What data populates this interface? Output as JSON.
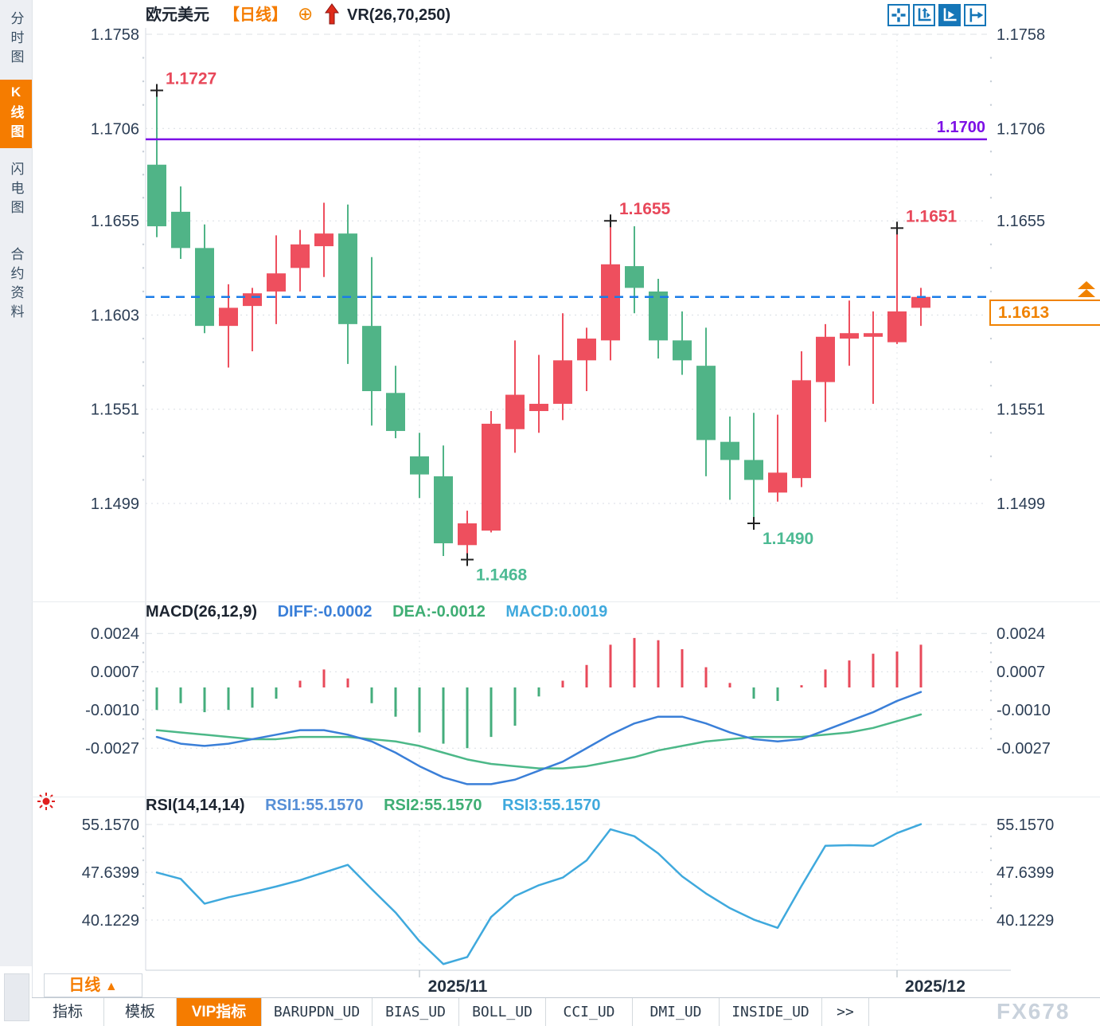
{
  "sidebar": {
    "items": [
      {
        "label": "分时图",
        "active": false
      },
      {
        "label": "K线图",
        "active": true
      },
      {
        "label": "闪电图",
        "active": false
      },
      {
        "label": "合约资料",
        "active": false
      }
    ]
  },
  "header": {
    "symbol": "欧元美元",
    "period_tag": "【日线】",
    "indicator": "VR(26,70,250)"
  },
  "toolbar_icons": [
    "crosshair",
    "axis-scale",
    "auto-scroll",
    "jump-to-latest"
  ],
  "indicators": {
    "macd": {
      "title": "MACD(26,12,9)",
      "diff": "DIFF:-0.0002",
      "dea": "DEA:-0.0012",
      "macd": "MACD:0.0019"
    },
    "rsi": {
      "title": "RSI(14,14,14)",
      "rsi1": "RSI1:55.1570",
      "rsi2": "RSI2:55.1570",
      "rsi3": "RSI3:55.1570"
    }
  },
  "price_box": {
    "value": "1.1613"
  },
  "period_button": {
    "label": "日线",
    "arrow": "▲"
  },
  "bottom_tabs": [
    {
      "label": "指标",
      "active": false,
      "mono": false
    },
    {
      "label": "模板",
      "active": false,
      "mono": false
    },
    {
      "label": "VIP指标",
      "active": true,
      "mono": false
    },
    {
      "label": "BARUPDN_UD",
      "active": false,
      "mono": true
    },
    {
      "label": "BIAS_UD",
      "active": false,
      "mono": true
    },
    {
      "label": "BOLL_UD",
      "active": false,
      "mono": true
    },
    {
      "label": "CCI_UD",
      "active": false,
      "mono": true
    },
    {
      "label": "DMI_UD",
      "active": false,
      "mono": true
    },
    {
      "label": "INSIDE_UD",
      "active": false,
      "mono": true
    },
    {
      "label": ">>",
      "active": false,
      "mono": true
    }
  ],
  "watermark": "FX678",
  "colors": {
    "up": "#ee4f5e",
    "down": "#50b487",
    "hist_up": "#e8495a",
    "hist_down": "#44ad7c",
    "diff_line": "#3a7fd8",
    "dea_line": "#4cb888",
    "rsi_line": "#3fa9dd",
    "ann_high": "#e8485a",
    "ann_low": "#4cba93",
    "hline_purple": "#7d10e6",
    "hline_blue": "#1a7ce8",
    "axis_text": "#2c3e55",
    "grid": "#d9dee4",
    "month_label": "#233040"
  },
  "chart_data": [
    {
      "panel": "price",
      "type": "candlestick",
      "symbol": "欧元美元",
      "period": "日线",
      "y_ticks": [
        1.1758,
        1.1706,
        1.1655,
        1.1603,
        1.1551,
        1.1499
      ],
      "price_top": 1.1758,
      "price_bottom": 1.1499,
      "candles": [
        [
          1.1686,
          1.1727,
          1.1646,
          1.1652
        ],
        [
          1.166,
          1.1674,
          1.1634,
          1.164
        ],
        [
          1.164,
          1.1653,
          1.1593,
          1.1597
        ],
        [
          1.1597,
          1.162,
          1.1574,
          1.1607
        ],
        [
          1.1608,
          1.1618,
          1.1583,
          1.1615
        ],
        [
          1.1616,
          1.1647,
          1.1598,
          1.1626
        ],
        [
          1.1629,
          1.165,
          1.1616,
          1.1642
        ],
        [
          1.1641,
          1.1665,
          1.1624,
          1.1648
        ],
        [
          1.1648,
          1.1664,
          1.1576,
          1.1598
        ],
        [
          1.1597,
          1.1635,
          1.1542,
          1.1561
        ],
        [
          1.156,
          1.1575,
          1.1535,
          1.1539
        ],
        [
          1.1525,
          1.1538,
          1.1502,
          1.1515
        ],
        [
          1.1514,
          1.1531,
          1.147,
          1.1477
        ],
        [
          1.1476,
          1.1495,
          1.1468,
          1.1488
        ],
        [
          1.1484,
          1.155,
          1.1483,
          1.1543
        ],
        [
          1.154,
          1.1589,
          1.1527,
          1.1559
        ],
        [
          1.155,
          1.1581,
          1.1538,
          1.1554
        ],
        [
          1.1554,
          1.1604,
          1.1545,
          1.1578
        ],
        [
          1.1578,
          1.1596,
          1.1561,
          1.159
        ],
        [
          1.1589,
          1.1655,
          1.1578,
          1.1631
        ],
        [
          1.163,
          1.1652,
          1.1604,
          1.1618
        ],
        [
          1.1616,
          1.1623,
          1.1579,
          1.1589
        ],
        [
          1.1589,
          1.1605,
          1.157,
          1.1578
        ],
        [
          1.1575,
          1.1596,
          1.1514,
          1.1534
        ],
        [
          1.1533,
          1.1547,
          1.1501,
          1.1523
        ],
        [
          1.1523,
          1.1549,
          1.1488,
          1.1512
        ],
        [
          1.1505,
          1.1548,
          1.15,
          1.1516
        ],
        [
          1.1513,
          1.1583,
          1.1508,
          1.1567
        ],
        [
          1.1566,
          1.1598,
          1.1544,
          1.1591
        ],
        [
          1.159,
          1.1611,
          1.1575,
          1.1593
        ],
        [
          1.1591,
          1.1605,
          1.1554,
          1.1593
        ],
        [
          1.1588,
          1.1651,
          1.1587,
          1.1605
        ],
        [
          1.1607,
          1.1618,
          1.1597,
          1.1613
        ]
      ],
      "annotations": [
        {
          "i": 0,
          "side": "high",
          "text": "1.1727"
        },
        {
          "i": 19,
          "side": "high",
          "text": "1.1655"
        },
        {
          "i": 31,
          "side": "high",
          "text": "1.1651"
        },
        {
          "i": 13,
          "side": "low",
          "text": "1.1468"
        },
        {
          "i": 25,
          "side": "low",
          "text": "1.1490"
        }
      ],
      "hlines": [
        {
          "value": 1.17,
          "label": "1.1700",
          "style": "solid",
          "color_key": "hline_purple"
        },
        {
          "value": 1.1613,
          "label": "",
          "style": "dashed",
          "color_key": "hline_blue"
        }
      ],
      "last_price": 1.1613,
      "month_vline_indices": [
        11,
        31
      ]
    },
    {
      "panel": "macd",
      "type": "bar+lines",
      "title": "MACD(26,12,9)",
      "y_ticks": [
        0.0024,
        0.0007,
        -0.001,
        -0.0027
      ],
      "hist": [
        -0.001,
        -0.0007,
        -0.0011,
        -0.001,
        -0.0009,
        -0.0005,
        0.0003,
        0.0008,
        0.0004,
        -0.0007,
        -0.0013,
        -0.002,
        -0.0025,
        -0.0027,
        -0.0022,
        -0.0017,
        -0.0004,
        0.0003,
        0.001,
        0.0019,
        0.0022,
        0.0021,
        0.0017,
        0.0009,
        0.0002,
        -0.0005,
        -0.0006,
        0.0001,
        0.0008,
        0.0012,
        0.0015,
        0.0016,
        0.0019
      ],
      "diff": [
        -0.0022,
        -0.0025,
        -0.0026,
        -0.0025,
        -0.0023,
        -0.0021,
        -0.0019,
        -0.0019,
        -0.0021,
        -0.0024,
        -0.0029,
        -0.0035,
        -0.004,
        -0.0043,
        -0.0043,
        -0.0041,
        -0.0037,
        -0.0033,
        -0.0027,
        -0.0021,
        -0.0016,
        -0.0013,
        -0.0013,
        -0.0016,
        -0.002,
        -0.0023,
        -0.0024,
        -0.0023,
        -0.0019,
        -0.0015,
        -0.0011,
        -0.0006,
        -0.0002
      ],
      "dea": [
        -0.0019,
        -0.002,
        -0.0021,
        -0.0022,
        -0.0023,
        -0.0023,
        -0.0022,
        -0.0022,
        -0.0022,
        -0.0023,
        -0.0024,
        -0.0026,
        -0.0029,
        -0.0032,
        -0.0034,
        -0.0035,
        -0.0036,
        -0.0036,
        -0.0035,
        -0.0033,
        -0.0031,
        -0.0028,
        -0.0026,
        -0.0024,
        -0.0023,
        -0.0022,
        -0.0022,
        -0.0022,
        -0.0021,
        -0.002,
        -0.0018,
        -0.0015,
        -0.0012
      ]
    },
    {
      "panel": "rsi",
      "type": "line",
      "title": "RSI(14,14,14)",
      "y_ticks": [
        55.157,
        47.6399,
        40.1229
      ],
      "rsi": [
        47.6,
        46.6,
        42.7,
        43.7,
        44.5,
        45.4,
        46.4,
        47.6,
        48.8,
        45.0,
        41.3,
        36.8,
        33.2,
        34.3,
        40.6,
        43.9,
        45.6,
        46.8,
        49.5,
        54.4,
        53.3,
        50.6,
        47.0,
        44.3,
        42.0,
        40.2,
        38.9,
        45.5,
        51.8,
        51.9,
        51.8,
        53.8,
        55.2
      ],
      "x_labels": [
        {
          "text": "2025/11",
          "at_index": 11
        },
        {
          "text": "2025/12",
          "at_index": 31
        }
      ]
    }
  ]
}
